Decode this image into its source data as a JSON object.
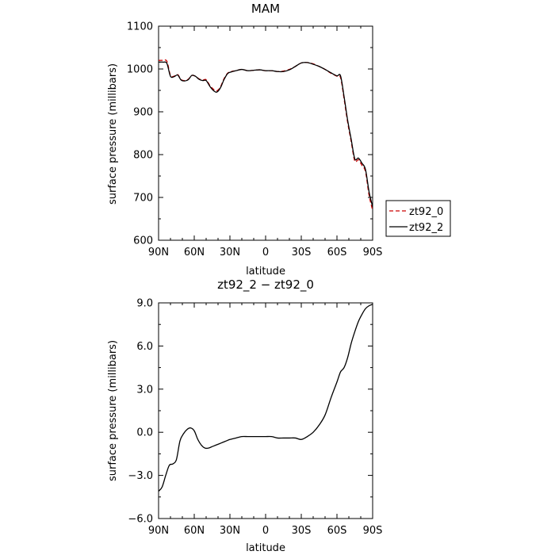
{
  "chart_data": [
    {
      "type": "line",
      "title": "MAM",
      "xlabel": "latitude",
      "ylabel": "surface pressure (millibars)",
      "xlim": [
        90,
        -90
      ],
      "ylim": [
        600,
        1100
      ],
      "xticks": [
        90,
        60,
        30,
        0,
        -30,
        -60,
        -90
      ],
      "xticklabels": [
        "90N",
        "60N",
        "30N",
        "0",
        "30S",
        "60S",
        "90S"
      ],
      "yticks": [
        600,
        700,
        800,
        900,
        1000,
        1100
      ],
      "yticklabels": [
        "600",
        "700",
        "800",
        "900",
        "1000",
        "1100"
      ],
      "legend": "outside-right",
      "series": [
        {
          "name": "zt92_0",
          "color": "#cc0000",
          "style": "dashed",
          "x": [
            90,
            86,
            83,
            80,
            77,
            74,
            71,
            68,
            65,
            62,
            59,
            56,
            53,
            50,
            47,
            44,
            41,
            38,
            35,
            32,
            29,
            25,
            20,
            15,
            10,
            5,
            0,
            -5,
            -10,
            -15,
            -20,
            -25,
            -30,
            -35,
            -40,
            -45,
            -50,
            -55,
            -60,
            -63,
            -66,
            -69,
            -72,
            -75,
            -78,
            -81,
            -84,
            -87,
            -90
          ],
          "y": [
            1020,
            1020,
            1018,
            985,
            983,
            987,
            975,
            973,
            976,
            985,
            983,
            977,
            974,
            975,
            962,
            953,
            949,
            958,
            977,
            990,
            994,
            996,
            999,
            996,
            997,
            998,
            996,
            996,
            994,
            995,
            999,
            1006,
            1014,
            1015,
            1012,
            1006,
            999,
            990,
            983,
            980,
            930,
            875,
            830,
            785,
            788,
            775,
            760,
            705,
            670
          ]
        },
        {
          "name": "zt92_2",
          "color": "#000000",
          "style": "solid",
          "x": [
            90,
            86,
            83,
            80,
            77,
            74,
            71,
            68,
            65,
            62,
            59,
            56,
            53,
            50,
            47,
            44,
            41,
            38,
            35,
            32,
            29,
            25,
            20,
            15,
            10,
            5,
            0,
            -5,
            -10,
            -15,
            -20,
            -25,
            -30,
            -35,
            -40,
            -45,
            -50,
            -55,
            -60,
            -63,
            -66,
            -69,
            -72,
            -75,
            -78,
            -81,
            -84,
            -87,
            -90
          ],
          "y": [
            1016,
            1016,
            1013,
            983,
            982,
            986,
            974,
            972,
            975,
            985,
            983,
            976,
            973,
            973,
            960,
            950,
            946,
            956,
            975,
            989,
            993,
            996,
            999,
            996,
            997,
            998,
            996,
            996,
            994,
            994,
            998,
            1006,
            1014,
            1015,
            1011,
            1006,
            999,
            991,
            984,
            984,
            935,
            880,
            835,
            790,
            792,
            780,
            765,
            713,
            678
          ]
        }
      ]
    },
    {
      "type": "line",
      "title": "zt92_2 − zt92_0",
      "xlabel": "latitude",
      "ylabel": "surface pressure (millibars)",
      "xlim": [
        90,
        -90
      ],
      "ylim": [
        -6,
        9
      ],
      "xticks": [
        90,
        60,
        30,
        0,
        -30,
        -60,
        -90
      ],
      "xticklabels": [
        "90N",
        "60N",
        "30N",
        "0",
        "30S",
        "60S",
        "90S"
      ],
      "yticks": [
        -6,
        -3,
        0,
        3,
        6,
        9
      ],
      "yticklabels": [
        "−6.0",
        "−3.0",
        "0.0",
        "3.0",
        "6.0",
        "9.0"
      ],
      "series": [
        {
          "color": "#000000",
          "style": "solid",
          "x": [
            90,
            87,
            84,
            81,
            78,
            75,
            72,
            69,
            66,
            63,
            60,
            57,
            54,
            51,
            48,
            45,
            42,
            39,
            36,
            33,
            30,
            25,
            20,
            15,
            10,
            5,
            0,
            -5,
            -10,
            -15,
            -20,
            -25,
            -30,
            -35,
            -40,
            -45,
            -50,
            -55,
            -60,
            -63,
            -66,
            -69,
            -72,
            -75,
            -78,
            -81,
            -84,
            -87,
            -90
          ],
          "y": [
            -4.1,
            -3.8,
            -3.0,
            -2.3,
            -2.2,
            -1.9,
            -0.6,
            -0.1,
            0.2,
            0.3,
            0.1,
            -0.5,
            -0.9,
            -1.1,
            -1.1,
            -1.0,
            -0.9,
            -0.8,
            -0.7,
            -0.6,
            -0.5,
            -0.4,
            -0.3,
            -0.3,
            -0.3,
            -0.3,
            -0.3,
            -0.3,
            -0.4,
            -0.4,
            -0.4,
            -0.4,
            -0.5,
            -0.3,
            0.0,
            0.5,
            1.2,
            2.4,
            3.5,
            4.2,
            4.5,
            5.2,
            6.2,
            7.0,
            7.7,
            8.2,
            8.6,
            8.8,
            8.9
          ]
        }
      ]
    }
  ]
}
